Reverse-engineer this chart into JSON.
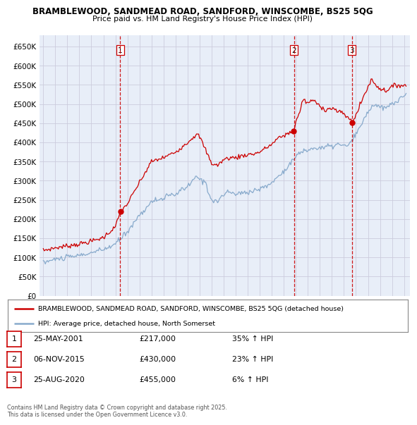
{
  "title1": "BRAMBLEWOOD, SANDMEAD ROAD, SANDFORD, WINSCOMBE, BS25 5QG",
  "title2": "Price paid vs. HM Land Registry's House Price Index (HPI)",
  "legend_line1": "BRAMBLEWOOD, SANDMEAD ROAD, SANDFORD, WINSCOMBE, BS25 5QG (detached house)",
  "legend_line2": "HPI: Average price, detached house, North Somerset",
  "sale_color": "#cc0000",
  "hpi_color": "#88aacc",
  "vline_color": "#cc0000",
  "grid_color": "#ccccdd",
  "bg_color": "#e8eef8",
  "transactions": [
    {
      "num": 1,
      "date": "25-MAY-2001",
      "price": 217000,
      "hpi_pct": "35% ↑ HPI",
      "year": 2001.4
    },
    {
      "num": 2,
      "date": "06-NOV-2015",
      "price": 430000,
      "hpi_pct": "23% ↑ HPI",
      "year": 2015.85
    },
    {
      "num": 3,
      "date": "25-AUG-2020",
      "price": 455000,
      "hpi_pct": "6% ↑ HPI",
      "year": 2020.65
    }
  ],
  "footer": "Contains HM Land Registry data © Crown copyright and database right 2025.\nThis data is licensed under the Open Government Licence v3.0.",
  "ylim": [
    0,
    680000
  ],
  "yticks": [
    0,
    50000,
    100000,
    150000,
    200000,
    250000,
    300000,
    350000,
    400000,
    450000,
    500000,
    550000,
    600000,
    650000
  ],
  "xlim_start": 1994.7,
  "xlim_end": 2025.5
}
